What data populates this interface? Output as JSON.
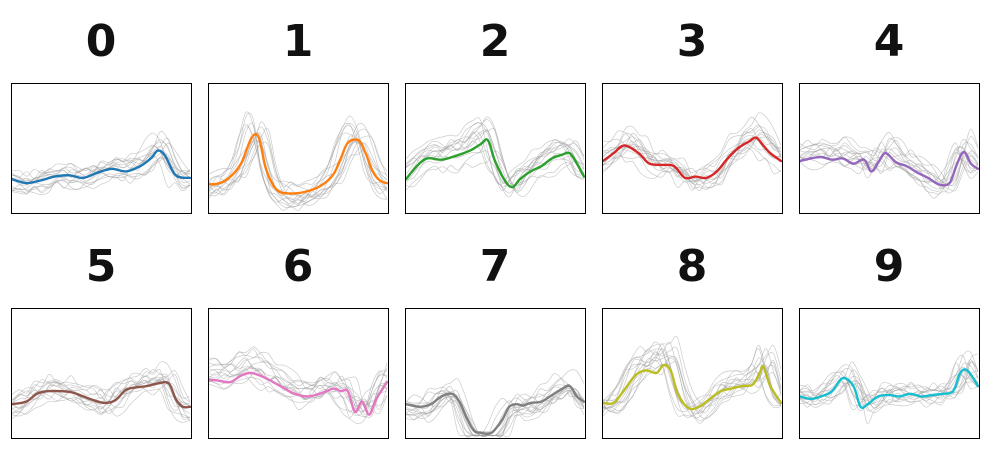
{
  "chart_data": [
    {
      "type": "line",
      "digit_label": "0",
      "color": "#1f77b4",
      "ylim": [
        0,
        1
      ],
      "mean_x": [
        0,
        0.08,
        0.16,
        0.24,
        0.32,
        0.4,
        0.48,
        0.56,
        0.64,
        0.72,
        0.78,
        0.82,
        0.86,
        0.92,
        1.0
      ],
      "mean_y": [
        0.26,
        0.23,
        0.25,
        0.28,
        0.29,
        0.27,
        0.31,
        0.34,
        0.32,
        0.36,
        0.42,
        0.48,
        0.44,
        0.29,
        0.27
      ]
    },
    {
      "type": "line",
      "digit_label": "1",
      "color": "#ff7f0e",
      "ylim": [
        0,
        1
      ],
      "mean_x": [
        0,
        0.06,
        0.12,
        0.18,
        0.24,
        0.28,
        0.32,
        0.38,
        0.46,
        0.56,
        0.64,
        0.7,
        0.74,
        0.78,
        0.84,
        0.88,
        0.92,
        0.96,
        1.0
      ],
      "mean_y": [
        0.22,
        0.23,
        0.28,
        0.38,
        0.58,
        0.58,
        0.34,
        0.18,
        0.15,
        0.17,
        0.22,
        0.3,
        0.42,
        0.54,
        0.56,
        0.46,
        0.32,
        0.25,
        0.23
      ]
    },
    {
      "type": "line",
      "digit_label": "2",
      "color": "#2ca02c",
      "ylim": [
        0,
        1
      ],
      "mean_x": [
        0,
        0.06,
        0.12,
        0.2,
        0.28,
        0.36,
        0.42,
        0.46,
        0.5,
        0.56,
        0.6,
        0.64,
        0.7,
        0.76,
        0.82,
        0.88,
        0.92,
        0.96,
        1.0
      ],
      "mean_y": [
        0.26,
        0.36,
        0.42,
        0.41,
        0.44,
        0.48,
        0.53,
        0.56,
        0.4,
        0.24,
        0.2,
        0.26,
        0.32,
        0.36,
        0.42,
        0.45,
        0.46,
        0.38,
        0.28
      ]
    },
    {
      "type": "line",
      "digit_label": "3",
      "color": "#d62728",
      "ylim": [
        0,
        1
      ],
      "mean_x": [
        0,
        0.06,
        0.12,
        0.2,
        0.26,
        0.34,
        0.4,
        0.46,
        0.52,
        0.58,
        0.64,
        0.7,
        0.76,
        0.82,
        0.86,
        0.9,
        0.94,
        1.0
      ],
      "mean_y": [
        0.4,
        0.46,
        0.52,
        0.46,
        0.38,
        0.37,
        0.36,
        0.27,
        0.28,
        0.27,
        0.32,
        0.42,
        0.5,
        0.55,
        0.58,
        0.52,
        0.46,
        0.4
      ]
    },
    {
      "type": "line",
      "digit_label": "4",
      "color": "#9467bd",
      "ylim": [
        0,
        1
      ],
      "mean_x": [
        0,
        0.06,
        0.12,
        0.18,
        0.24,
        0.3,
        0.36,
        0.4,
        0.44,
        0.48,
        0.54,
        0.6,
        0.66,
        0.72,
        0.78,
        0.84,
        0.88,
        0.92,
        0.96,
        1.0
      ],
      "mean_y": [
        0.4,
        0.42,
        0.43,
        0.41,
        0.42,
        0.38,
        0.41,
        0.32,
        0.39,
        0.46,
        0.39,
        0.36,
        0.31,
        0.27,
        0.22,
        0.23,
        0.37,
        0.47,
        0.38,
        0.34
      ]
    },
    {
      "type": "line",
      "digit_label": "5",
      "color": "#8c564b",
      "ylim": [
        0,
        1
      ],
      "mean_x": [
        0,
        0.08,
        0.14,
        0.2,
        0.28,
        0.34,
        0.4,
        0.46,
        0.52,
        0.58,
        0.64,
        0.7,
        0.76,
        0.82,
        0.88,
        0.92,
        0.96,
        1.0
      ],
      "mean_y": [
        0.26,
        0.28,
        0.34,
        0.36,
        0.36,
        0.35,
        0.32,
        0.29,
        0.27,
        0.29,
        0.37,
        0.39,
        0.4,
        0.42,
        0.42,
        0.3,
        0.24,
        0.24
      ]
    },
    {
      "type": "line",
      "digit_label": "6",
      "color": "#e377c2",
      "ylim": [
        0,
        1
      ],
      "mean_x": [
        0,
        0.06,
        0.12,
        0.18,
        0.24,
        0.32,
        0.4,
        0.48,
        0.56,
        0.64,
        0.7,
        0.74,
        0.78,
        0.82,
        0.86,
        0.9,
        0.94,
        1.0
      ],
      "mean_y": [
        0.45,
        0.44,
        0.43,
        0.48,
        0.5,
        0.46,
        0.4,
        0.34,
        0.32,
        0.35,
        0.38,
        0.36,
        0.36,
        0.2,
        0.28,
        0.18,
        0.3,
        0.43
      ]
    },
    {
      "type": "line",
      "digit_label": "7",
      "color": "#7f7f7f",
      "ylim": [
        0,
        1
      ],
      "mean_x": [
        0,
        0.08,
        0.14,
        0.2,
        0.26,
        0.3,
        0.34,
        0.38,
        0.42,
        0.48,
        0.54,
        0.58,
        0.62,
        0.66,
        0.7,
        0.76,
        0.82,
        0.88,
        0.92,
        0.96,
        1.0
      ],
      "mean_y": [
        0.26,
        0.24,
        0.26,
        0.32,
        0.34,
        0.28,
        0.16,
        0.06,
        0.04,
        0.04,
        0.14,
        0.24,
        0.26,
        0.25,
        0.27,
        0.28,
        0.33,
        0.38,
        0.4,
        0.32,
        0.28
      ]
    },
    {
      "type": "line",
      "digit_label": "8",
      "color": "#bcbd22",
      "ylim": [
        0,
        1
      ],
      "mean_x": [
        0,
        0.06,
        0.12,
        0.18,
        0.24,
        0.3,
        0.34,
        0.38,
        0.42,
        0.48,
        0.54,
        0.6,
        0.66,
        0.72,
        0.78,
        0.84,
        0.88,
        0.9,
        0.94,
        1.0
      ],
      "mean_y": [
        0.27,
        0.27,
        0.37,
        0.48,
        0.52,
        0.5,
        0.56,
        0.52,
        0.34,
        0.23,
        0.24,
        0.3,
        0.36,
        0.38,
        0.4,
        0.41,
        0.5,
        0.55,
        0.4,
        0.27
      ]
    },
    {
      "type": "line",
      "digit_label": "9",
      "color": "#17becf",
      "ylim": [
        0,
        1
      ],
      "mean_x": [
        0,
        0.06,
        0.12,
        0.18,
        0.24,
        0.3,
        0.34,
        0.38,
        0.44,
        0.5,
        0.56,
        0.62,
        0.68,
        0.74,
        0.8,
        0.86,
        0.9,
        0.94,
        1.0
      ],
      "mean_y": [
        0.32,
        0.3,
        0.32,
        0.36,
        0.46,
        0.4,
        0.24,
        0.26,
        0.32,
        0.33,
        0.32,
        0.34,
        0.32,
        0.33,
        0.34,
        0.36,
        0.5,
        0.52,
        0.4
      ]
    }
  ]
}
